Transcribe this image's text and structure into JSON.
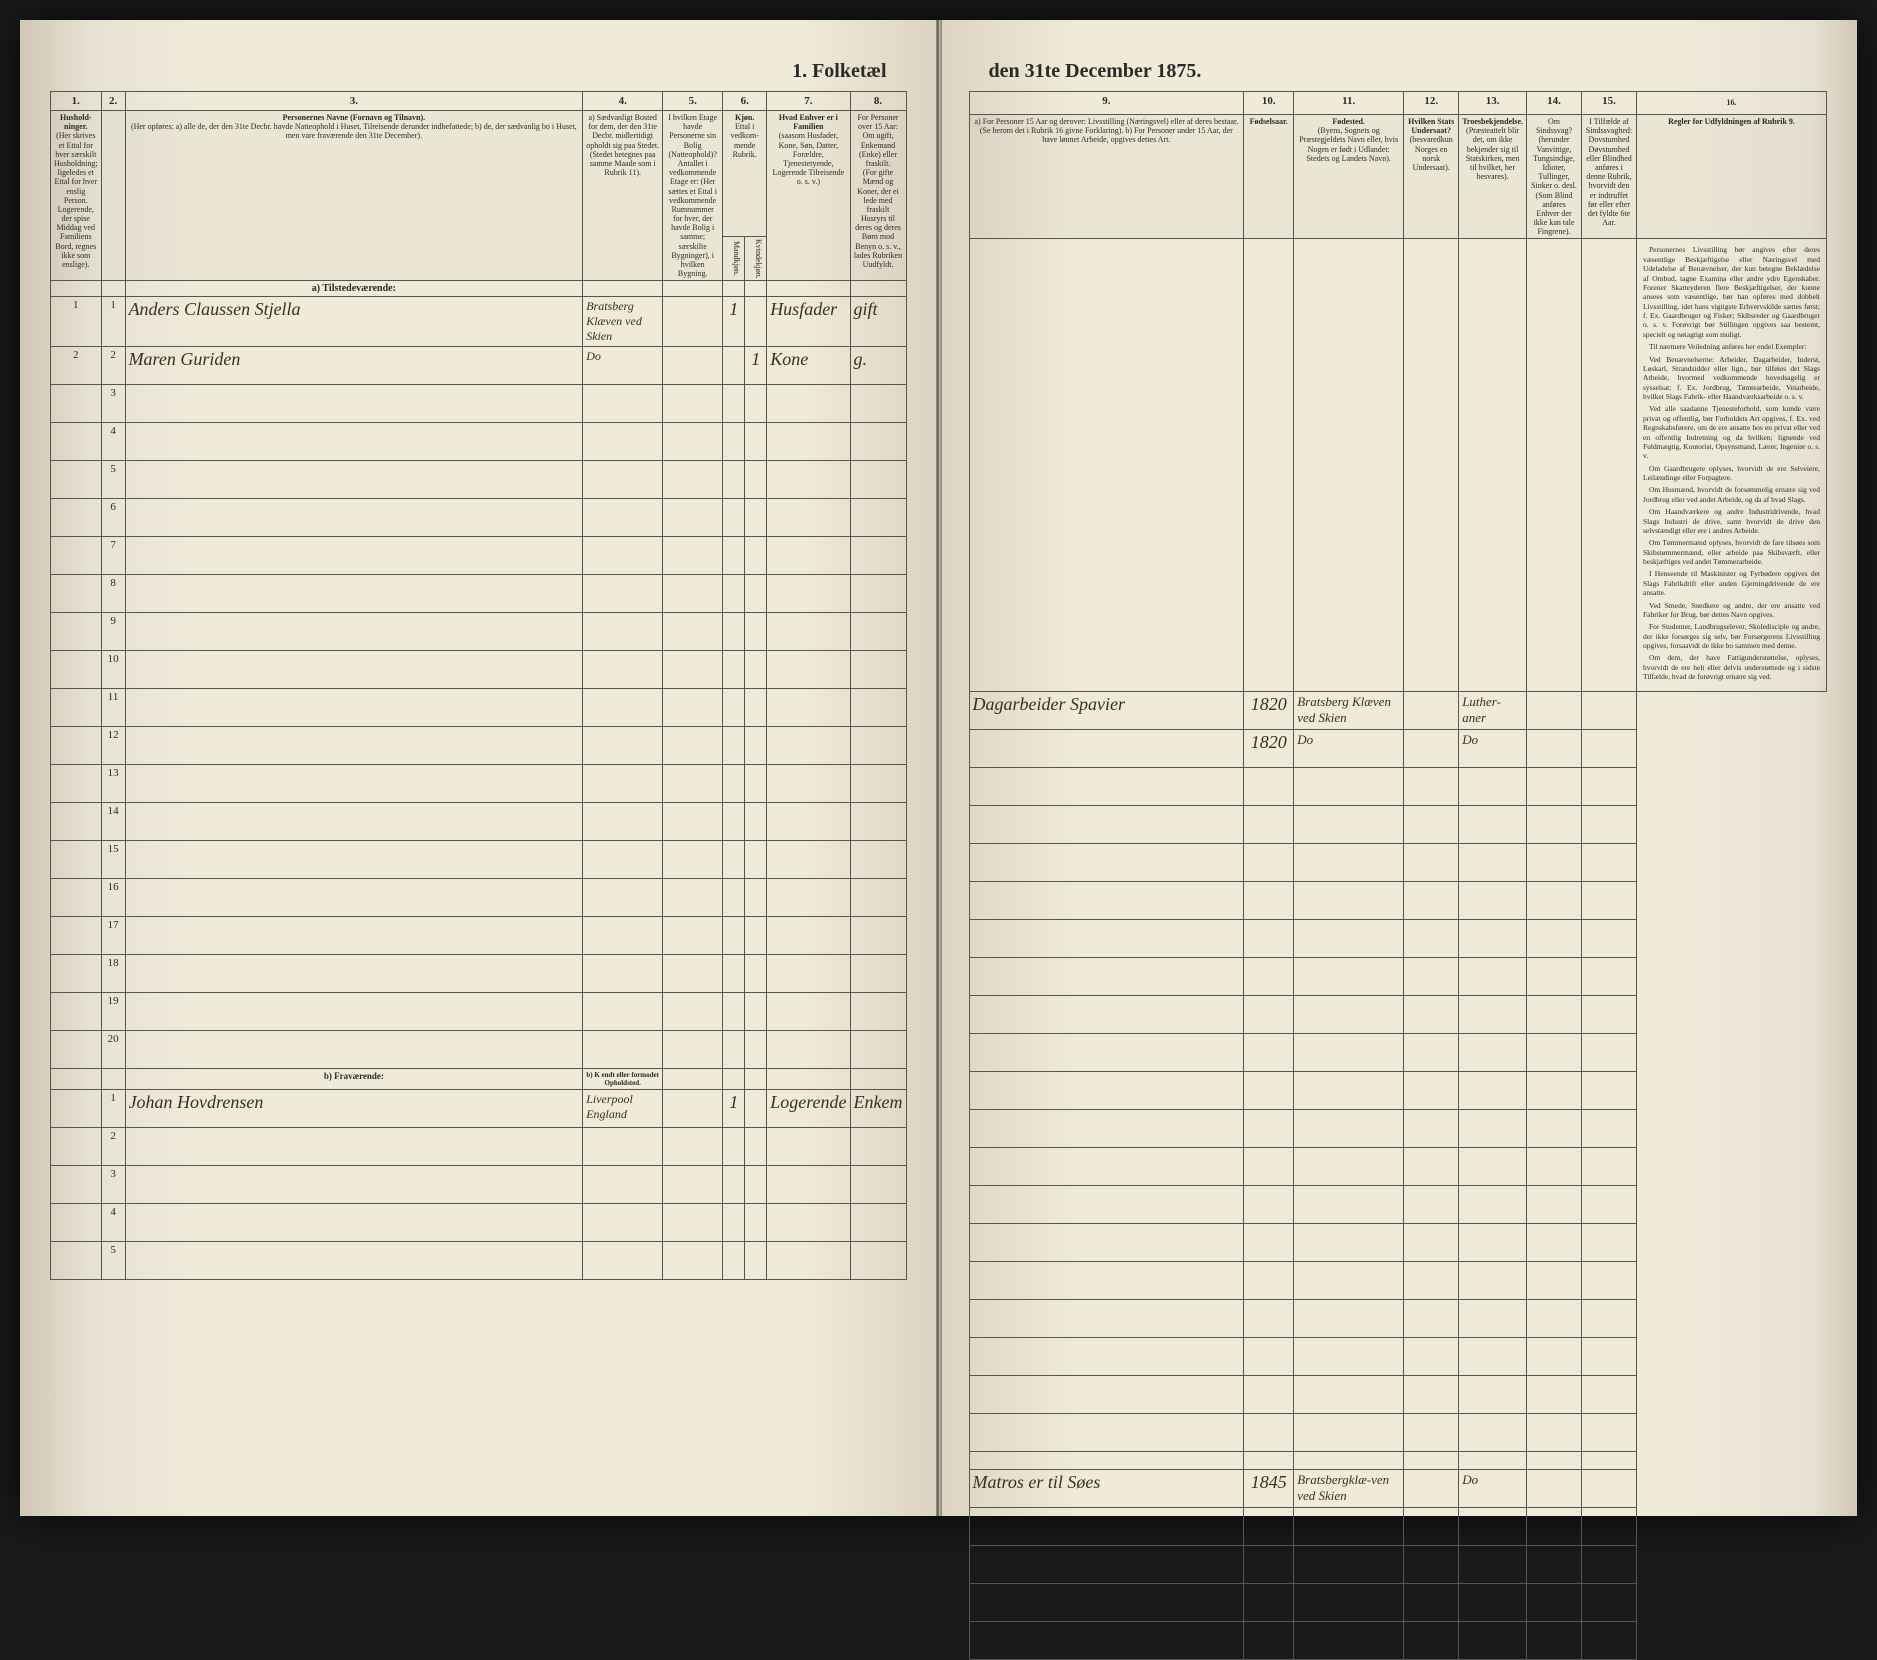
{
  "document": {
    "title_left": "1. Folketæl",
    "title_right": "den 31te December 1875.",
    "background_color": "#f0ead9",
    "border_color": "#555555",
    "text_color": "#2a2a2a",
    "handwriting_color": "#3a3020"
  },
  "columns": {
    "left": [
      {
        "num": "1.",
        "header": "Hushold-ninger.",
        "sub": "(Her skrives et Ettal for hver særskilt Husholdning; ligeledes et Ettal for hver enslig Person. Logerende, der spise Middag ved Familiens Bord, regnes ikke som enslige)."
      },
      {
        "num": "2.",
        "header": "",
        "sub": ""
      },
      {
        "num": "3.",
        "header": "Personernes Navne (Fornavn og Tilnavn).",
        "sub": "(Her opføres: a) alle de, der den 31te Decbr. havde Natteophold i Huset, Tilreisende derunder indbefattede; b) de, der sædvanlig bo i Huset, men vare fraværende den 31te December)."
      },
      {
        "num": "4.",
        "header": "a) Sædvanligt Bosted for dem, der den 31te Decbr. midlertidigt opholdt sig paa Stedet.",
        "sub": "(Stedet betegnes paa samme Maade som i Rubrik 11)."
      },
      {
        "num": "5.",
        "header": "I hvilken Etage havde Personerne sin Bolig (Natteophold)?",
        "sub": "Antallet i vedkommende Etage er: (Her sættes et Ettal i vedkommende Rumnummer for hver, der havde Bolig i samme; særskilte Bygninger), i hvilken Bygning."
      },
      {
        "num": "6.",
        "header": "Kjøn.",
        "sub": "Ettal i vedkom-mende Rubrik.",
        "cols": [
          "Mandkjøn.",
          "Kvindekjøn."
        ]
      },
      {
        "num": "7.",
        "header": "Hvad Enhver er i Familien",
        "sub": "(saasom Husfader, Kone, Søn, Datter, Forældre, Tjenestetyende, Logerende Tilreisende o. s. v.)"
      },
      {
        "num": "8.",
        "header": "For Personer over 15 Aar: Om ugift, Enkemand (Enke) eller fraskilt.",
        "sub": "(For gifte Mænd og Koner, der ei lede med fraskilt Husryrs til deres og deres Børn mod Benyn o. s. v., lades Rubriken Uudfyldt."
      }
    ],
    "right": [
      {
        "num": "9.",
        "header": "a) For Personer 15 Aar og derover: Livsstilling (Næringsvel) eller af deres bestaar.",
        "sub": "(Se herom det i Rubrik 16 givne Forklaring). b) For Personer under 15 Aar, der have lønnet Arbeide, opgives dettes Art."
      },
      {
        "num": "10.",
        "header": "Fødselsaar."
      },
      {
        "num": "11.",
        "header": "Fødested.",
        "sub": "(Byens, Sognets og Præstegjeldets Navn eller, hvis Nogen er født i Udlandet: Stedets og Landets Navn)."
      },
      {
        "num": "12.",
        "header": "Hvilken Stats Undersaat?",
        "sub": "(besvaredkun Norges en norsk Undersaat)."
      },
      {
        "num": "13.",
        "header": "Troesbekjendelse.",
        "sub": "(Præsteattelt blir det, om ikke bekjender sig til Statskirken, men til hvilket, her besvares)."
      },
      {
        "num": "14.",
        "header": "Om Sindssvag? (herunder Vanvittige, Tungsindige, Idioter, Tullinger, Sinker o. desl. (Som Blind anføres Enhver der ikke kan tale Fingrene)."
      },
      {
        "num": "15.",
        "header": "I Tilfælde af Sindssvaghed: Dovstumhed Døvstumhed eller Blindhed anføres i denne Rubrik, hvorvidt den er indtruffet før eller efter det fyldte 6te Aar."
      },
      {
        "num": "16.",
        "header": "Regler for Udfyldningen af Rubrik 9."
      }
    ]
  },
  "rows": {
    "present_label": "a) Tilstedeværende:",
    "absent_label": "b) Fraværende:",
    "absent_col4": "b) K endt eller formodet Opholdsted.",
    "data": [
      {
        "n": "1",
        "name": "Anders Claussen Stjella",
        "col4": "Bratsberg Klæven ved Skien",
        "col5": "",
        "col6a": "1",
        "col6b": "",
        "col7": "Husfader",
        "col8": "gift",
        "col9": "Dagarbeider Spavier",
        "col10": "1820",
        "col11": "Bratsberg Klæven ved Skien",
        "col12": "",
        "col13": "Luther-aner",
        "col14": "",
        "col15": ""
      },
      {
        "n": "2",
        "name": "Maren Guriden",
        "col4": "Do",
        "col5": "",
        "col6a": "",
        "col6b": "1",
        "col7": "Kone",
        "col8": "g.",
        "col9": "",
        "col10": "1820",
        "col11": "Do",
        "col12": "",
        "col13": "Do",
        "col14": "",
        "col15": ""
      },
      {
        "n": "3"
      },
      {
        "n": "4"
      },
      {
        "n": "5"
      },
      {
        "n": "6"
      },
      {
        "n": "7"
      },
      {
        "n": "8"
      },
      {
        "n": "9"
      },
      {
        "n": "10"
      },
      {
        "n": "11"
      },
      {
        "n": "12"
      },
      {
        "n": "13"
      },
      {
        "n": "14"
      },
      {
        "n": "15"
      },
      {
        "n": "16"
      },
      {
        "n": "17"
      },
      {
        "n": "18"
      },
      {
        "n": "19"
      },
      {
        "n": "20"
      }
    ],
    "absent_data": [
      {
        "n": "1",
        "name": "Johan Hovdrensen",
        "col4": "Liverpool England",
        "col5": "",
        "col6a": "1",
        "col6b": "",
        "col7": "Logerende",
        "col8": "Enkem",
        "col9": "Matros er til Søes",
        "col10": "1845",
        "col11": "Bratsbergklæ-ven ved Skien",
        "col12": "",
        "col13": "Do",
        "col14": "",
        "col15": ""
      },
      {
        "n": "2"
      },
      {
        "n": "3"
      },
      {
        "n": "4"
      },
      {
        "n": "5"
      }
    ]
  },
  "rules": {
    "heading": "Regler for Udfyldningen",
    "sub1": "af",
    "sub2": "Rubrik 9.",
    "paragraphs": [
      "Personernes Livsstilling bør angives efter deres væsentlige Beskjæftigelse eller Næringsvel med Udeladelse af Benævnelser, der kun betegne Beklædelse af Ombud, tagne Examina eller andre ydre Egenskaber. Forener Skatteyderen flere Beskjæftigelser, der kunne ansees som væsentlige, bør han opføres med dobbelt Livsstilling, idet hans vigtigste Erhvervskilde sættes først; f. Ex. Gaardbruger og Fisker; Skibsreder og Gaardbruger o. s. v. Forøvrigt bør Stillingen opgives saa bestemt, specielt og nøiagtigt som muligt.",
      "Til nærmere Veiledning anføres her endel Exempler:",
      "Ved Benævnelserne: Arbeider, Dagarbeider, Inderst, Løskarl, Strandsidder eller lign., bør tilføies det Slags Arbeide, hvormed vedkommende hovedsagelig er sysselsat; f. Ex. Jordbrug, Tømtearbeide, Veiarbeide, hvilket Slags Fabrik- eller Haandværksarbeide o. s. v.",
      "Ved alle saadanne Tjenesteforhold, som kunde være privat og offentlig, bør Forholdets Art opgives, f. Ex. ved Regnskabsførere, om de ere ansatte hos en privat eller ved en offentlig Indretning og da hvilken; lignende ved Fuldmægtig, Kontorist, Opsynsmand, Lærer, Ingeniør o. s. v.",
      "Om Gaardbrugere oplyses, hvorvidt de ere Selveiere, Leilændinge eller Forpagtere.",
      "Om Husmænd, hvorvidt de forsømmelig ernære sig ved Jordbrug eller ved andet Arbeide, og da af hvad Slags.",
      "Om Haandværkere og andre Industridrivende, hvad Slags Industri de drive, samt hvorvidt de drive den selvstændigt eller ere i andres Arbeide.",
      "Om Tømmermænd oplyses, hvorvidt de fare tilsøes som Skibstømmermænd, eller arbeide paa Skibsværft, eller beskjæftiges ved andet Tømmerarbeide.",
      "I Henseende til Maskinister og Fyrbødere opgives det Slags Fabrikdrift eller anden Gjerningdrivende de ere ansatte.",
      "Ved Smede, Snedkere og andre, der ere ansatte ved Fabriker for Brug, bør dettes Navn opgives.",
      "For Studenter, Landbrugselever, Skoledisciple og andre, der ikke forsørges sig selv, bør Forsørgerens Livsstilling opgives, forsaavidt de ikke bo sammen med denne.",
      "Om dem, der have Fattigunderstøttelse, oplyses, hvorvidt de ere helt eller delvis understøttede og i sidste Tilfælde, hvad de forøvrigt ernære sig ved."
    ]
  }
}
